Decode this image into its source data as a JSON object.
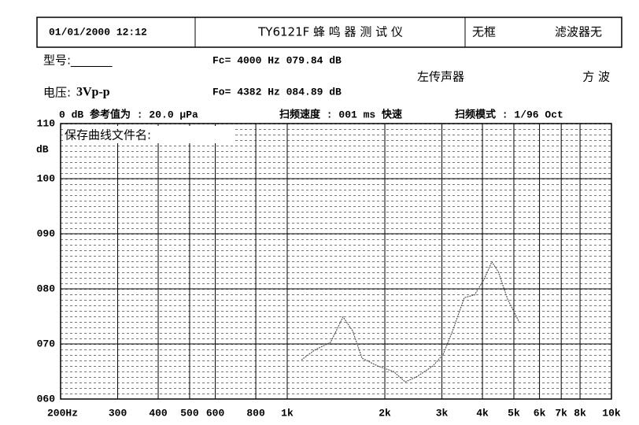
{
  "header": {
    "datetime": "01/01/2000 12:12",
    "title": "TY6121F 蜂 鸣 器 测 试 仪",
    "frame": "无框",
    "filter": "滤波器无"
  },
  "info": {
    "model": "型号:_______",
    "fc": "Fc= 4000 Hz 079.84 dB",
    "mic": "左传声器",
    "wave": "方 波",
    "voltage_label": "电压:",
    "voltage": "3Vp-p",
    "fo": "Fo= 4382 Hz 084.89 dB",
    "reference": "0 dB 参考值为 : 20.0 μPa",
    "sweep_speed": "扫频速度 : 001 ms 快速",
    "sweep_mode": "扫频模式 : 1/96 Oct",
    "save_file": "保存曲线文件名:"
  },
  "chart_data": {
    "type": "line",
    "y_label": "dB",
    "log_x": true,
    "xlim": [
      200,
      10000
    ],
    "xticks": [
      {
        "value": 200,
        "label": "200Hz"
      },
      300,
      400,
      500,
      600,
      800,
      {
        "value": 1000,
        "label": "1k"
      },
      {
        "value": 2000,
        "label": "2k"
      },
      {
        "value": 3000,
        "label": "3k"
      },
      {
        "value": 4000,
        "label": "4k"
      },
      {
        "value": 5000,
        "label": "5k"
      },
      {
        "value": 6000,
        "label": "6k"
      },
      {
        "value": 7000,
        "label": "7k"
      },
      {
        "value": 8000,
        "label": "8k"
      },
      {
        "value": 10000,
        "label": "10k"
      }
    ],
    "ylim": [
      60,
      110
    ],
    "yticks": [
      {
        "value": 60,
        "label": "060"
      },
      {
        "value": 70,
        "label": "070"
      },
      {
        "value": 80,
        "label": "080"
      },
      {
        "value": 90,
        "label": "090"
      },
      100,
      110
    ],
    "grid": true,
    "series": [
      {
        "color": "#555555",
        "x": [
          1106,
          1216,
          1361,
          1486,
          1590,
          1702,
          1901,
          2127,
          2312,
          2517,
          2813,
          3025,
          3237,
          3516,
          3784,
          4045,
          4276,
          4478,
          4785,
          5201
        ],
        "values": [
          67.1,
          68.9,
          70.3,
          74.9,
          72.4,
          67.4,
          66,
          65,
          63.1,
          64.1,
          66,
          68.1,
          72.4,
          78.4,
          78.9,
          81.7,
          84.9,
          83.1,
          78.1,
          73.9
        ]
      }
    ]
  }
}
